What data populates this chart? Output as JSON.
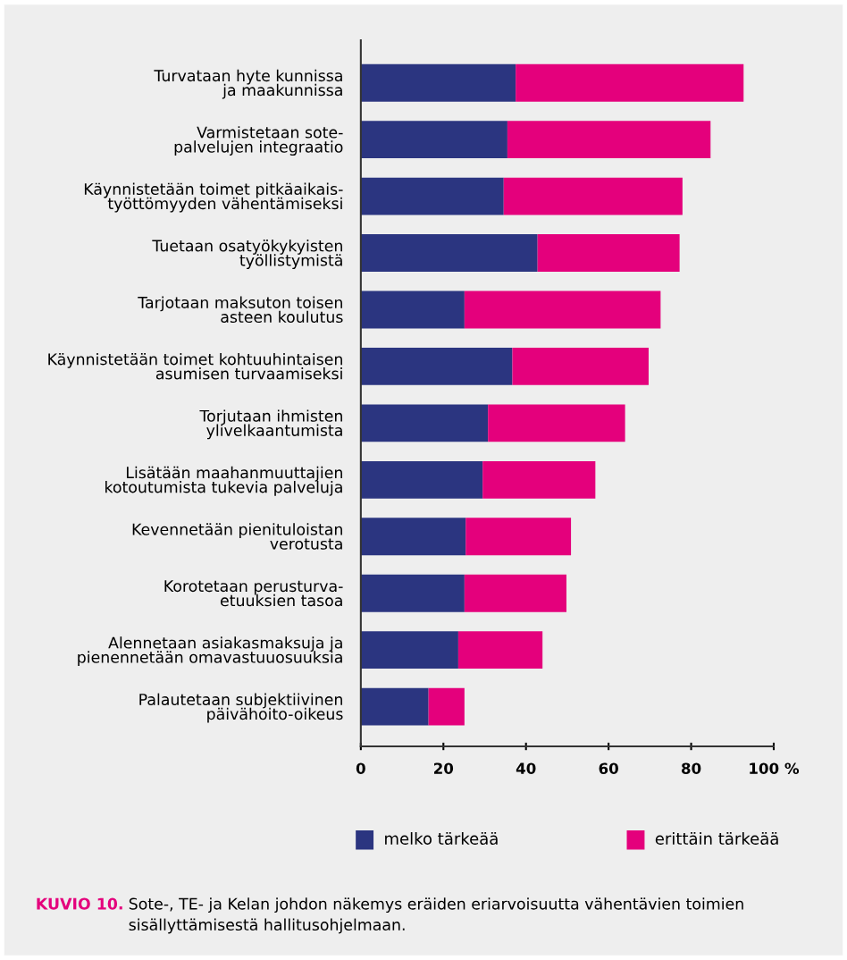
{
  "chart_data": {
    "type": "bar",
    "orientation": "horizontal",
    "stacked": true,
    "categories": [
      "Turvataan hyte kunnissa\nja maakunnissa",
      "Varmistetaan sote-\npalvelujen integraatio",
      "Käynnistetään toimet pitkäaikais-\ntyöttömyyden vähentämiseksi",
      "Tuetaan osatyökykyisten\ntyöllistymistä",
      "Tarjotaan maksuton toisen\nasteen koulutus",
      "Käynnistetään toimet kohtuuhintaisen\nasumisen turvaamiseksi",
      "Torjutaan ihmisten\nylivelkaantumista",
      "Lisätään maahanmuuttajien\nkotoutumista tukevia palveluja",
      "Kevennetään pienituloistan\nverotusta",
      "Korotetaan perusturva-\netuuksien tasoa",
      "Alennetaan asiakasmaksuja ja\npienennetään omavastuuosuuksia",
      "Palautetaan subjektiivinen\npäivähoito-oikeus"
    ],
    "series": [
      {
        "name": "melko tärkeää",
        "color": "#2b3580",
        "values": [
          37.5,
          35.5,
          34.6,
          42.8,
          25.1,
          36.7,
          30.8,
          29.5,
          25.4,
          25.1,
          23.6,
          16.4
        ]
      },
      {
        "name": "erittäin tärkeää",
        "color": "#e4007c",
        "values": [
          55.2,
          49.2,
          43.3,
          34.4,
          47.5,
          33.0,
          33.2,
          27.3,
          25.5,
          24.7,
          20.4,
          8.7
        ]
      }
    ],
    "xlim": [
      0,
      100
    ],
    "xticks": [
      0,
      20,
      40,
      60,
      80,
      {
        "value": 100,
        "label": "100 %"
      }
    ],
    "grid": false,
    "legend": "bottom",
    "annotations": [
      "KUVIO 10.",
      "Sote-, TE- ja Kelan johdon näkemys eräiden eriarvoisuutta vähentävien toimien sisällyttämisestä hallitusohjelmaan."
    ]
  }
}
